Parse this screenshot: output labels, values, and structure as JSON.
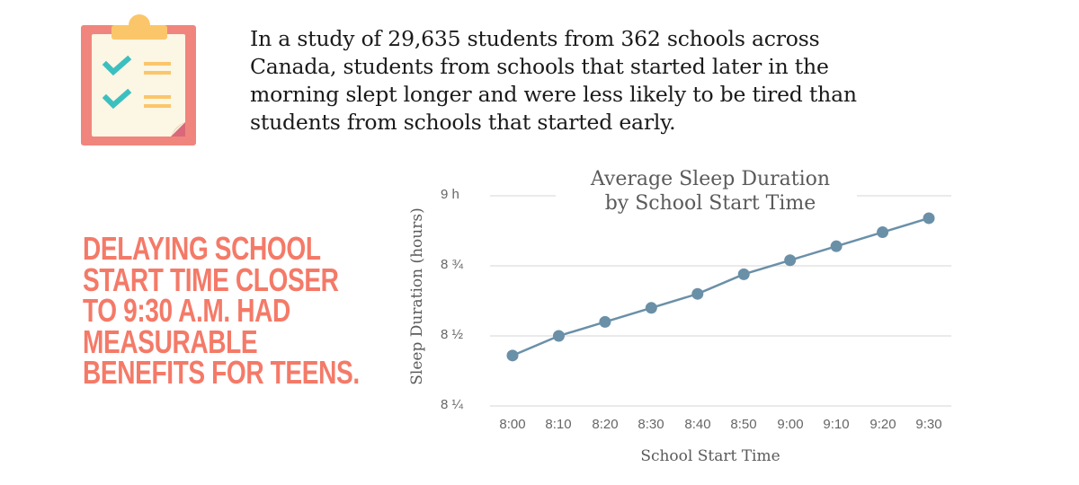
{
  "intro": {
    "lines": [
      "In a study of 29,635 students from 362 schools across",
      "Canada, students from schools that started later in the",
      "morning slept longer and were less likely to be tired than",
      "students from schools that started early."
    ]
  },
  "callout": {
    "lines": [
      "DELAYING SCHOOL",
      "START TIME CLOSER",
      "TO 9:30 A.M. HAD",
      "MEASURABLE",
      "BENEFITS FOR TEENS."
    ],
    "color": "#f47a68"
  },
  "icon": {
    "name": "clipboard-checklist-icon"
  },
  "colors": {
    "line": "#6a90a8",
    "grid": "#e4e4e4",
    "clipboard_board": "#f0857e",
    "clipboard_paper": "#fcf6e4",
    "clipboard_clip": "#fbc66a",
    "check": "#3cbfbf",
    "lines": "#fbc66a"
  },
  "chart_data": {
    "type": "line",
    "title": "Average Sleep Duration by School Start Time",
    "title_lines": [
      "Average Sleep Duration",
      "by School Start Time"
    ],
    "xlabel": "School Start Time",
    "ylabel": "Sleep Duration (hours)",
    "categories": [
      "8:00",
      "8:10",
      "8:20",
      "8:30",
      "8:40",
      "8:50",
      "9:00",
      "9:10",
      "9:20",
      "9:30"
    ],
    "values": [
      8.43,
      8.5,
      8.55,
      8.6,
      8.65,
      8.72,
      8.77,
      8.82,
      8.87,
      8.92
    ],
    "y_ticks": [
      {
        "value": 9.0,
        "label": "9 h"
      },
      {
        "value": 8.75,
        "label": "8 ¾"
      },
      {
        "value": 8.5,
        "label": "8 ½"
      },
      {
        "value": 8.25,
        "label": "8 ¼"
      }
    ],
    "ylim": [
      8.25,
      9.0
    ],
    "grid": true,
    "legend": "none"
  }
}
